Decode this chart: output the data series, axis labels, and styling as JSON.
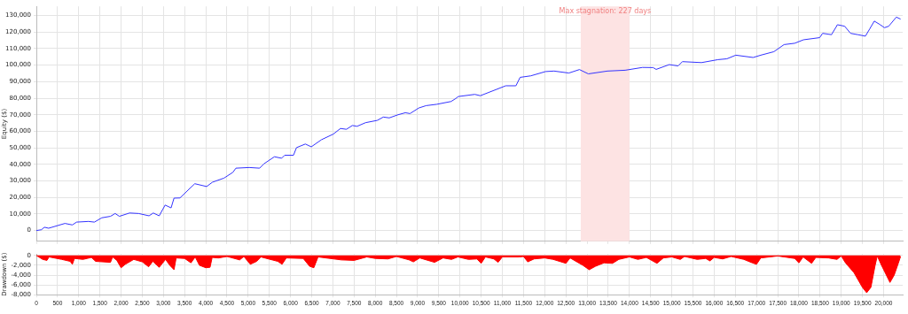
{
  "chart_data": [
    {
      "type": "line",
      "ylabel": "Equity ($)",
      "xlim": [
        0,
        20450
      ],
      "ylim": [
        -6500,
        135500
      ],
      "tick_labels": "y",
      "grid": true,
      "legend": false,
      "marker": "none",
      "xticks": [
        0,
        500,
        1000,
        1500,
        2000,
        2500,
        3000,
        3500,
        4000,
        4500,
        5000,
        5500,
        6000,
        6500,
        7000,
        7500,
        8000,
        8500,
        9000,
        9500,
        10000,
        10500,
        11000,
        11500,
        12000,
        12500,
        13000,
        13500,
        14000,
        14500,
        15000,
        15500,
        16000,
        16500,
        17000,
        17500,
        18000,
        18500,
        19000,
        19500,
        20000
      ],
      "yticks": [
        0,
        {
          "value": 10000,
          "label": "10,000"
        },
        {
          "value": 20000,
          "label": "20,000"
        },
        {
          "value": 30000,
          "label": "30,000"
        },
        {
          "value": 40000,
          "label": "40,000"
        },
        {
          "value": 50000,
          "label": "50,000"
        },
        {
          "value": 60000,
          "label": "60,000"
        },
        {
          "value": 70000,
          "label": "70,000"
        },
        {
          "value": 80000,
          "label": "80,000"
        },
        {
          "value": 90000,
          "label": "90,000"
        },
        {
          "value": 100000,
          "label": "100,000"
        },
        {
          "value": 110000,
          "label": "110,000"
        },
        {
          "value": 120000,
          "label": "120,000"
        },
        {
          "value": 130000,
          "label": "130,000"
        }
      ],
      "bands": [
        {
          "axis": "x",
          "from": 12850,
          "to": 14000,
          "label": "Max stagnation: 227 days",
          "color": "#fde3e3"
        }
      ],
      "series": [
        {
          "color": "#3333ff",
          "x": [
            0,
            120,
            190,
            290,
            675,
            850,
            950,
            1230,
            1370,
            1545,
            1750,
            1860,
            1960,
            2200,
            2415,
            2660,
            2760,
            2900,
            3040,
            3180,
            3250,
            3390,
            3600,
            3740,
            4020,
            4155,
            4430,
            4640,
            4710,
            5025,
            5270,
            5370,
            5620,
            5790,
            5860,
            6070,
            6140,
            6350,
            6490,
            6730,
            7010,
            7180,
            7320,
            7460,
            7570,
            7770,
            8050,
            8190,
            8330,
            8540,
            8710,
            8820,
            9030,
            9200,
            9450,
            9790,
            9900,
            9960,
            10350,
            10480,
            11080,
            11320,
            11420,
            11670,
            12020,
            12220,
            12570,
            12820,
            13030,
            13480,
            13900,
            14310,
            14560,
            14630,
            14940,
            15150,
            15250,
            15700,
            16090,
            16300,
            16510,
            16920,
            17100,
            17410,
            17650,
            17900,
            18110,
            18490,
            18560,
            18770,
            18910,
            19080,
            19220,
            19390,
            19570,
            19670,
            19780,
            19920,
            20020,
            20120,
            20300,
            20400
          ],
          "values": [
            0,
            500,
            2000,
            1400,
            4300,
            3400,
            5100,
            5500,
            5100,
            7700,
            8600,
            10300,
            8600,
            10600,
            10300,
            8900,
            10600,
            8900,
            15400,
            13700,
            19600,
            19700,
            24900,
            28300,
            26600,
            29200,
            31700,
            35200,
            37700,
            38100,
            37700,
            40300,
            44600,
            43700,
            45500,
            45500,
            50100,
            52300,
            50600,
            54900,
            58300,
            61700,
            61200,
            63500,
            63000,
            65200,
            66600,
            68600,
            68100,
            70000,
            71200,
            70700,
            74100,
            75500,
            76300,
            78000,
            79800,
            81000,
            82300,
            81500,
            87500,
            87500,
            92600,
            93500,
            96100,
            96400,
            95200,
            97300,
            94700,
            96400,
            96900,
            98600,
            98500,
            97400,
            100300,
            99500,
            102100,
            101500,
            103300,
            103800,
            106000,
            104600,
            106000,
            108100,
            112400,
            113200,
            115300,
            116600,
            119200,
            118400,
            124400,
            123500,
            119200,
            118400,
            117500,
            121800,
            126600,
            124400,
            122600,
            123500,
            129000,
            127800
          ]
        }
      ]
    },
    {
      "type": "area",
      "ylabel": "Drawdown ($)",
      "xlim": [
        0,
        20450
      ],
      "ylim": [
        -8000,
        300
      ],
      "grid": true,
      "legend": false,
      "marker": "none",
      "xticks": [
        0,
        500,
        {
          "value": 1000,
          "label": "1,000"
        },
        {
          "value": 1500,
          "label": "1,500"
        },
        {
          "value": 2000,
          "label": "2,000"
        },
        {
          "value": 2500,
          "label": "2,500"
        },
        {
          "value": 3000,
          "label": "3,000"
        },
        {
          "value": 3500,
          "label": "3,500"
        },
        {
          "value": 4000,
          "label": "4,000"
        },
        {
          "value": 4500,
          "label": "4,500"
        },
        {
          "value": 5000,
          "label": "5,000"
        },
        {
          "value": 5500,
          "label": "5,500"
        },
        {
          "value": 6000,
          "label": "6,000"
        },
        {
          "value": 6500,
          "label": "6,500"
        },
        {
          "value": 7000,
          "label": "7,000"
        },
        {
          "value": 7500,
          "label": "7,500"
        },
        {
          "value": 8000,
          "label": "8,000"
        },
        {
          "value": 8500,
          "label": "8,500"
        },
        {
          "value": 9000,
          "label": "9,000"
        },
        {
          "value": 9500,
          "label": "9,500"
        },
        {
          "value": 10000,
          "label": "10,000"
        },
        {
          "value": 10500,
          "label": "10,500"
        },
        {
          "value": 11000,
          "label": "11,000"
        },
        {
          "value": 11500,
          "label": "11,500"
        },
        {
          "value": 12000,
          "label": "12,000"
        },
        {
          "value": 12500,
          "label": "12,500"
        },
        {
          "value": 13000,
          "label": "13,000"
        },
        {
          "value": 13500,
          "label": "13,500"
        },
        {
          "value": 14000,
          "label": "14,000"
        },
        {
          "value": 14500,
          "label": "14,500"
        },
        {
          "value": 15000,
          "label": "15,000"
        },
        {
          "value": 15500,
          "label": "15,500"
        },
        {
          "value": 16000,
          "label": "16,000"
        },
        {
          "value": 16500,
          "label": "16,500"
        },
        {
          "value": 17000,
          "label": "17,000"
        },
        {
          "value": 17500,
          "label": "17,500"
        },
        {
          "value": 18000,
          "label": "18,000"
        },
        {
          "value": 18500,
          "label": "18,500"
        },
        {
          "value": 19000,
          "label": "19,000"
        },
        {
          "value": 19500,
          "label": "19,500"
        },
        {
          "value": 20000,
          "label": "20,000"
        }
      ],
      "yticks": [
        0,
        {
          "value": -2000,
          "label": "-2,000"
        },
        {
          "value": -4000,
          "label": "-4,000"
        },
        {
          "value": -6000,
          "label": "-6,000"
        },
        {
          "value": -8000,
          "label": "-8,000"
        }
      ],
      "series": [
        {
          "color": "#ff0000",
          "x": [
            0,
            150,
            250,
            300,
            600,
            800,
            850,
            900,
            1100,
            1300,
            1400,
            1750,
            1800,
            1900,
            2000,
            2100,
            2300,
            2500,
            2650,
            2750,
            2900,
            3050,
            3150,
            3250,
            3300,
            3500,
            3650,
            3750,
            3850,
            4000,
            4100,
            4150,
            4300,
            4500,
            4800,
            4900,
            5050,
            5200,
            5300,
            5700,
            5800,
            5900,
            6300,
            6450,
            6550,
            6650,
            7200,
            7500,
            7800,
            8000,
            8300,
            8500,
            8800,
            8900,
            9050,
            9400,
            9600,
            9800,
            9950,
            10200,
            10400,
            10500,
            10600,
            10800,
            10900,
            11000,
            11400,
            11500,
            11600,
            11750,
            12000,
            12200,
            12500,
            12600,
            12900,
            13050,
            13200,
            13400,
            13600,
            13750,
            14000,
            14200,
            14400,
            14650,
            14800,
            15000,
            15200,
            15300,
            15600,
            15800,
            15900,
            16000,
            16200,
            16400,
            16700,
            16900,
            17000,
            17100,
            17500,
            17900,
            18000,
            18100,
            18300,
            18400,
            18700,
            18900,
            19000,
            19100,
            19300,
            19500,
            19600,
            19700,
            19800,
            19850,
            19950,
            20150,
            20250,
            20350,
            20400
          ],
          "values": [
            0,
            -800,
            -1000,
            -300,
            -800,
            -1200,
            -1800,
            -600,
            -800,
            -400,
            -1200,
            -1400,
            -300,
            -1000,
            -2500,
            -1800,
            -800,
            -1300,
            -2300,
            -1200,
            -2400,
            -800,
            -2000,
            -2900,
            -500,
            -600,
            -1500,
            -300,
            -2000,
            -2500,
            -2400,
            -400,
            -500,
            -200,
            -900,
            -200,
            -1800,
            -1200,
            -300,
            -1200,
            -1800,
            -500,
            -600,
            -2200,
            -2500,
            -300,
            -900,
            -1000,
            -300,
            -600,
            -700,
            -200,
            -900,
            -1300,
            -500,
            -1400,
            -500,
            -800,
            -300,
            -800,
            -700,
            -1600,
            -300,
            -700,
            -1400,
            -300,
            -300,
            -200,
            -1300,
            -700,
            -500,
            -800,
            -1600,
            -500,
            -2000,
            -2900,
            -2200,
            -1500,
            -1600,
            -800,
            -300,
            -800,
            -400,
            -1600,
            -500,
            -300,
            -800,
            -200,
            -800,
            -600,
            -1100,
            -400,
            -700,
            -200,
            -800,
            -1500,
            -1800,
            -500,
            -100,
            -600,
            -1500,
            -300,
            -1600,
            -400,
            -500,
            -800,
            -100,
            -1500,
            -3500,
            -6500,
            -7600,
            -6500,
            -2000,
            -100,
            -2000,
            -5500,
            -4000,
            -1500,
            -200
          ]
        }
      ]
    }
  ]
}
